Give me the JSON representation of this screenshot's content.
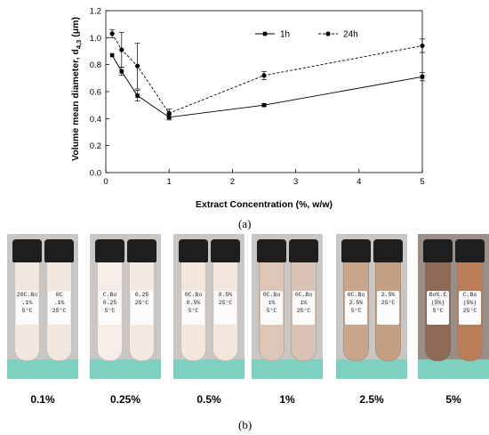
{
  "panel_labels": {
    "a": "(a)",
    "b": "(b)"
  },
  "chart_data": {
    "type": "line",
    "xlabel": "Extract Concentration (%, w/w)",
    "ylabel": "Volume mean diameter, d",
    "ylabel_subscript": "4,3",
    "ylabel_unit": " (μm)",
    "xlim": [
      0,
      5
    ],
    "ylim": [
      0,
      1.2
    ],
    "xticks": [
      0,
      1,
      2,
      3,
      4,
      5
    ],
    "yticks": [
      0.0,
      0.2,
      0.4,
      0.6,
      0.8,
      1.0,
      1.2
    ],
    "ytick_labels": [
      "0.0",
      "0.2",
      "0.4",
      "0.6",
      "0.8",
      "1.0",
      "1.2"
    ],
    "legend_position": "top-right",
    "grid": false,
    "series": [
      {
        "name": "1h",
        "style": "solid",
        "color": "#000000",
        "x": [
          0.1,
          0.25,
          0.5,
          1.0,
          2.5,
          5.0
        ],
        "y": [
          0.87,
          0.75,
          0.57,
          0.41,
          0.5,
          0.71
        ],
        "err": [
          0.0,
          0.03,
          0.04,
          0.02,
          0.01,
          0.03
        ]
      },
      {
        "name": "24h",
        "style": "dashed",
        "color": "#000000",
        "x": [
          0.1,
          0.25,
          0.5,
          1.0,
          2.5,
          5.0
        ],
        "y": [
          1.03,
          0.91,
          0.79,
          0.44,
          0.72,
          0.94
        ],
        "err": [
          0.03,
          0.13,
          0.17,
          0.03,
          0.03,
          0.05
        ]
      }
    ]
  },
  "photos": [
    {
      "label": "0.1%",
      "liquid": "#f1e7df",
      "liquid2": "#f1e7df",
      "tag_left": "20C.Bo\n.1%\n5°C",
      "tag_right": "0C\n.1%\n25°C"
    },
    {
      "label": "0.25%",
      "liquid": "#f6ede8",
      "liquid2": "#f3e8e2",
      "tag_left": "C.Bo\n0.25\n5°C",
      "tag_right": "0.25\n25°C"
    },
    {
      "label": "0.5%",
      "liquid": "#f3e6dd",
      "liquid2": "#f2e5dc",
      "tag_left": "0C.Bo\n0.5%\n5°C",
      "tag_right": "0.5%\n25°C"
    },
    {
      "label": "1%",
      "liquid": "#dcc6b8",
      "liquid2": "#d9c3b4",
      "tag_left": "0C.Bo\n1%\n5°C",
      "tag_right": "0C.Bo\n1%\n25°C"
    },
    {
      "label": "2.5%",
      "liquid": "#c9a58c",
      "liquid2": "#c59f84",
      "tag_left": "0C.Bo\n2.5%\n5°C",
      "tag_right": "2.5%\n25°C"
    },
    {
      "label": "5%",
      "liquid": "#8c6a55",
      "liquid2": "#b97d57",
      "tag_left": "Bo%.E\n(5%)\n5°C",
      "tag_right": "C.Bo\n(5%)\n25°C"
    }
  ]
}
